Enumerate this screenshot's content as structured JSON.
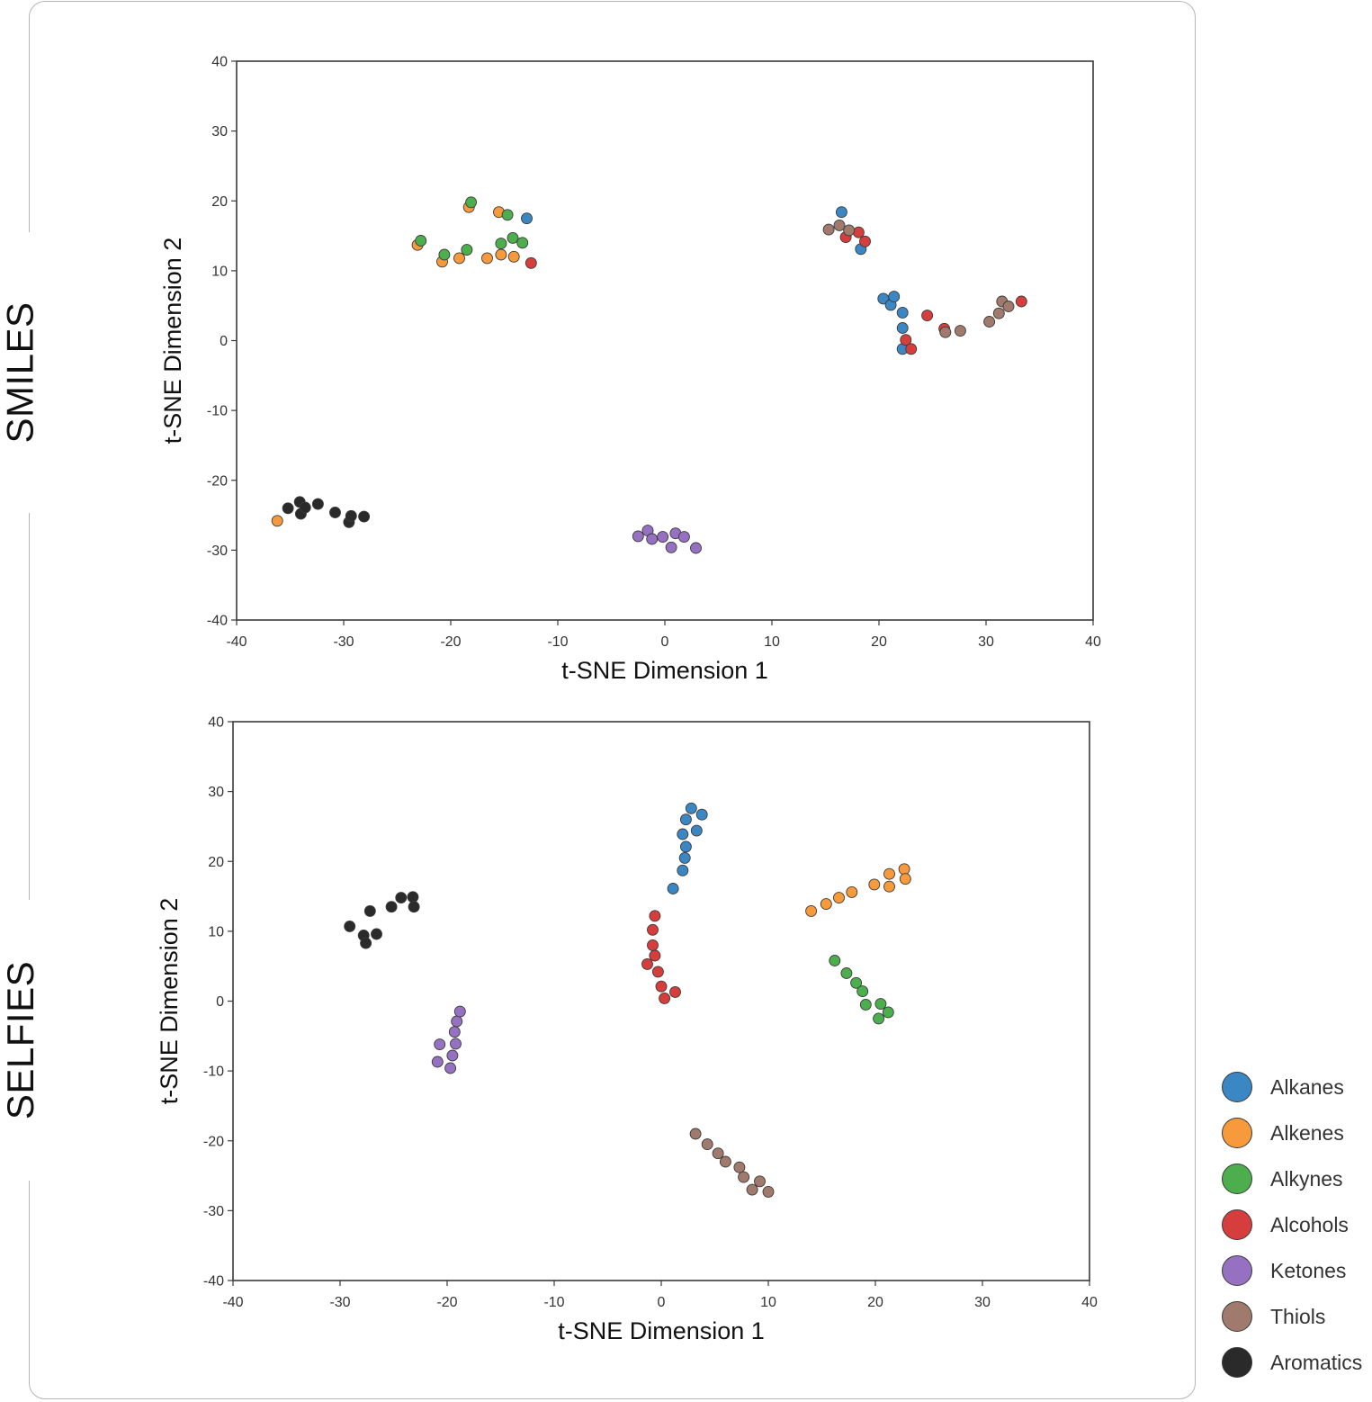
{
  "row_labels": {
    "top": "SMILES",
    "bottom": "SELFIES"
  },
  "colors": {
    "Alkanes": "#3a87c4",
    "Alkenes": "#f69a3c",
    "Alkynes": "#4cae4c",
    "Alcohols": "#d53e3c",
    "Ketones": "#9671c1",
    "Thiols": "#a07a6c",
    "Aromatics": "#2a2a2a"
  },
  "legend": {
    "items": [
      {
        "label": "Alkanes",
        "color": "#3a87c4"
      },
      {
        "label": "Alkenes",
        "color": "#f69a3c"
      },
      {
        "label": "Alkynes",
        "color": "#4cae4c"
      },
      {
        "label": "Alcohols",
        "color": "#d53e3c"
      },
      {
        "label": "Ketones",
        "color": "#9671c1"
      },
      {
        "label": "Thiols",
        "color": "#a07a6c"
      },
      {
        "label": "Aromatics",
        "color": "#2a2a2a"
      }
    ]
  },
  "chart_data": [
    {
      "type": "scatter",
      "title": "SMILES",
      "xlabel": "t-SNE Dimension 1",
      "ylabel": "t-SNE Dimension 2",
      "xlim": [
        -40,
        40
      ],
      "ylim": [
        -40,
        40
      ],
      "xticks": [
        "-40",
        "-30",
        "-20",
        "-10",
        "0",
        "10",
        "20",
        "30",
        "40"
      ],
      "yticks": [
        "40",
        "30",
        "20",
        "10",
        "0",
        "-10",
        "-20",
        "-30",
        "-40"
      ],
      "series": [
        {
          "name": "Alkanes",
          "points": [
            [
              -12.9,
              17.5
            ],
            [
              16.5,
              18.4
            ],
            [
              18.3,
              13.1
            ],
            [
              20.4,
              6.0
            ],
            [
              21.1,
              5.1
            ],
            [
              21.4,
              6.3
            ],
            [
              22.2,
              4.0
            ],
            [
              22.2,
              1.8
            ],
            [
              22.2,
              -1.2
            ]
          ]
        },
        {
          "name": "Alkenes",
          "points": [
            [
              -23.1,
              13.7
            ],
            [
              -20.8,
              11.3
            ],
            [
              -19.2,
              11.8
            ],
            [
              -18.3,
              19.1
            ],
            [
              -16.6,
              11.8
            ],
            [
              -15.5,
              18.4
            ],
            [
              -15.3,
              12.3
            ],
            [
              -14.1,
              12.0
            ],
            [
              -36.2,
              -25.8
            ]
          ]
        },
        {
          "name": "Alkynes",
          "points": [
            [
              -22.8,
              14.3
            ],
            [
              -20.6,
              12.3
            ],
            [
              -18.5,
              13.0
            ],
            [
              -18.1,
              19.8
            ],
            [
              -15.3,
              13.9
            ],
            [
              -14.7,
              18.0
            ],
            [
              -14.2,
              14.7
            ],
            [
              -13.3,
              14.0
            ]
          ]
        },
        {
          "name": "Alcohols",
          "points": [
            [
              -12.5,
              11.1
            ],
            [
              16.9,
              14.8
            ],
            [
              18.1,
              15.5
            ],
            [
              18.7,
              14.2
            ],
            [
              22.5,
              0.1
            ],
            [
              23.0,
              -1.2
            ],
            [
              24.5,
              3.6
            ],
            [
              26.1,
              1.7
            ],
            [
              33.3,
              5.6
            ]
          ]
        },
        {
          "name": "Ketones",
          "points": [
            [
              -2.5,
              -28.0
            ],
            [
              -1.6,
              -27.2
            ],
            [
              -1.2,
              -28.4
            ],
            [
              -0.2,
              -28.1
            ],
            [
              0.6,
              -29.6
            ],
            [
              1.0,
              -27.6
            ],
            [
              1.8,
              -28.1
            ],
            [
              2.9,
              -29.7
            ]
          ]
        },
        {
          "name": "Thiols",
          "points": [
            [
              15.3,
              15.9
            ],
            [
              16.3,
              16.5
            ],
            [
              17.2,
              15.8
            ],
            [
              26.2,
              1.2
            ],
            [
              27.6,
              1.4
            ],
            [
              30.3,
              2.7
            ],
            [
              31.2,
              3.9
            ],
            [
              31.5,
              5.6
            ],
            [
              32.1,
              4.9
            ]
          ]
        },
        {
          "name": "Aromatics",
          "points": [
            [
              -35.2,
              -24.0
            ],
            [
              -34.1,
              -23.1
            ],
            [
              -34.0,
              -24.8
            ],
            [
              -33.6,
              -23.9
            ],
            [
              -32.4,
              -23.4
            ],
            [
              -30.8,
              -24.6
            ],
            [
              -29.5,
              -26.0
            ],
            [
              -29.3,
              -25.1
            ],
            [
              -28.1,
              -25.2
            ]
          ]
        }
      ]
    },
    {
      "type": "scatter",
      "title": "SELFIES",
      "xlabel": "t-SNE Dimension 1",
      "ylabel": "t-SNE Dimension 2",
      "xlim": [
        -40,
        40
      ],
      "ylim": [
        -40,
        40
      ],
      "xticks": [
        "-40",
        "-30",
        "-20",
        "-10",
        "0",
        "10",
        "20",
        "30",
        "40"
      ],
      "yticks": [
        "40",
        "30",
        "20",
        "10",
        "0",
        "-10",
        "-20",
        "-30",
        "-40"
      ],
      "series": [
        {
          "name": "Alkanes",
          "points": [
            [
              1.1,
              16.1
            ],
            [
              2.0,
              18.7
            ],
            [
              2.0,
              23.9
            ],
            [
              2.2,
              20.5
            ],
            [
              2.3,
              22.1
            ],
            [
              2.3,
              26.0
            ],
            [
              2.8,
              27.6
            ],
            [
              3.3,
              24.4
            ],
            [
              3.8,
              26.7
            ]
          ]
        },
        {
          "name": "Alkenes",
          "points": [
            [
              14.0,
              12.9
            ],
            [
              15.4,
              13.9
            ],
            [
              16.6,
              14.8
            ],
            [
              17.8,
              15.6
            ],
            [
              19.9,
              16.7
            ],
            [
              21.3,
              18.2
            ],
            [
              21.3,
              16.4
            ],
            [
              22.7,
              18.9
            ],
            [
              22.8,
              17.5
            ]
          ]
        },
        {
          "name": "Alkynes",
          "points": [
            [
              16.2,
              5.8
            ],
            [
              17.3,
              4.0
            ],
            [
              18.2,
              2.6
            ],
            [
              18.8,
              1.4
            ],
            [
              19.1,
              -0.5
            ],
            [
              20.3,
              -2.5
            ],
            [
              20.5,
              -0.4
            ],
            [
              21.2,
              -1.6
            ]
          ]
        },
        {
          "name": "Alcohols",
          "points": [
            [
              -1.3,
              5.3
            ],
            [
              -0.8,
              10.2
            ],
            [
              -0.8,
              8.0
            ],
            [
              -0.6,
              12.2
            ],
            [
              -0.6,
              6.5
            ],
            [
              -0.3,
              4.2
            ],
            [
              0.0,
              2.1
            ],
            [
              0.3,
              0.4
            ],
            [
              1.3,
              1.3
            ]
          ]
        },
        {
          "name": "Ketones",
          "points": [
            [
              -20.9,
              -8.7
            ],
            [
              -20.7,
              -6.2
            ],
            [
              -19.7,
              -9.6
            ],
            [
              -19.5,
              -7.8
            ],
            [
              -19.3,
              -4.4
            ],
            [
              -19.2,
              -6.1
            ],
            [
              -19.1,
              -2.9
            ],
            [
              -18.8,
              -1.5
            ]
          ]
        },
        {
          "name": "Thiols",
          "points": [
            [
              3.2,
              -19.0
            ],
            [
              4.3,
              -20.5
            ],
            [
              5.3,
              -21.8
            ],
            [
              6.0,
              -23.0
            ],
            [
              7.3,
              -23.8
            ],
            [
              7.7,
              -25.2
            ],
            [
              8.5,
              -27.0
            ],
            [
              9.2,
              -25.8
            ],
            [
              10.0,
              -27.3
            ]
          ]
        },
        {
          "name": "Aromatics",
          "points": [
            [
              -29.1,
              10.7
            ],
            [
              -27.8,
              9.4
            ],
            [
              -27.6,
              8.3
            ],
            [
              -27.2,
              12.9
            ],
            [
              -26.6,
              9.6
            ],
            [
              -25.2,
              13.5
            ],
            [
              -24.3,
              14.8
            ],
            [
              -23.2,
              14.9
            ],
            [
              -23.1,
              13.5
            ]
          ]
        }
      ]
    }
  ]
}
